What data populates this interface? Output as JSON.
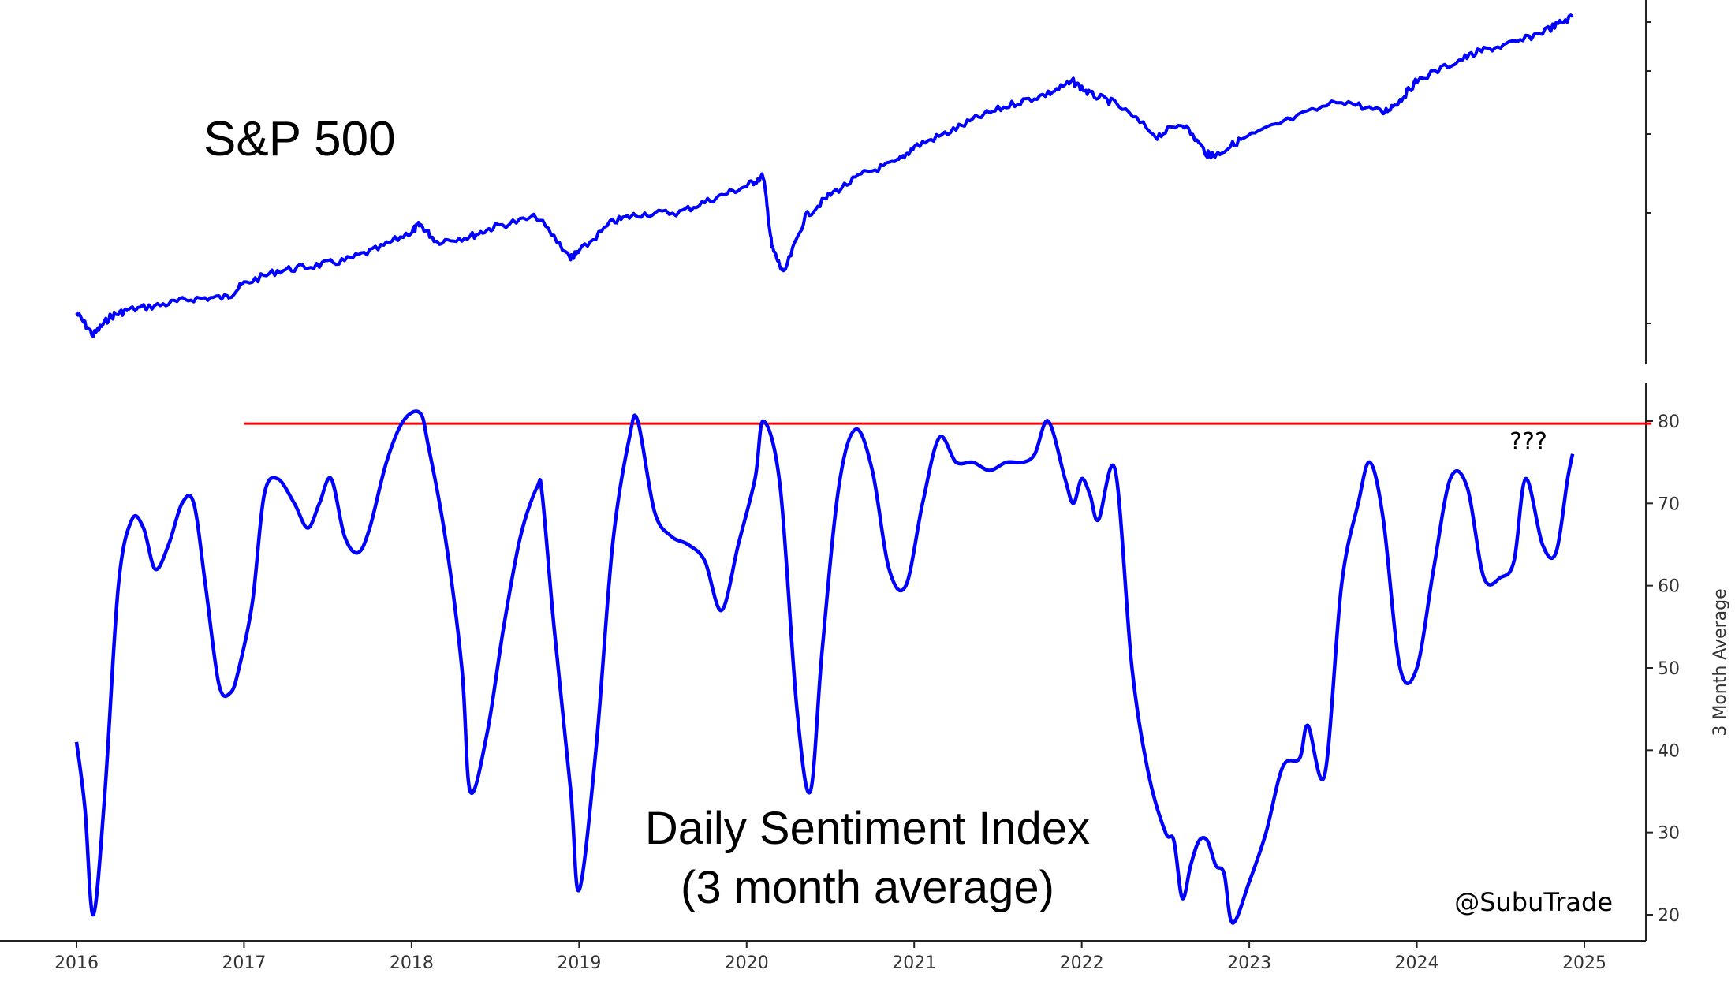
{
  "chart_data": [
    {
      "type": "line",
      "title": "S&P 500",
      "x": [
        2016.0,
        2016.1,
        2016.2,
        2016.3,
        2016.5,
        2016.7,
        2016.9,
        2017.0,
        2017.2,
        2017.4,
        2017.6,
        2017.8,
        2018.0,
        2018.05,
        2018.15,
        2018.35,
        2018.5,
        2018.75,
        2018.95,
        2019.0,
        2019.2,
        2019.35,
        2019.6,
        2019.8,
        2020.0,
        2020.1,
        2020.15,
        2020.22,
        2020.35,
        2020.5,
        2020.7,
        2020.9,
        2021.0,
        2021.2,
        2021.4,
        2021.6,
        2021.8,
        2021.95,
        2022.05,
        2022.2,
        2022.45,
        2022.6,
        2022.75,
        2022.8,
        2022.95,
        2023.2,
        2023.55,
        2023.8,
        2023.9,
        2024.0,
        2024.25,
        2024.4,
        2024.6,
        2024.8,
        2024.93
      ],
      "values": [
        2040,
        1880,
        2010,
        2060,
        2100,
        2150,
        2160,
        2270,
        2380,
        2420,
        2470,
        2580,
        2750,
        2820,
        2650,
        2700,
        2800,
        2900,
        2500,
        2550,
        2850,
        2930,
        2950,
        3100,
        3250,
        3370,
        2600,
        2350,
        2900,
        3150,
        3400,
        3550,
        3750,
        3950,
        4200,
        4400,
        4560,
        4760,
        4550,
        4400,
        3900,
        4100,
        3650,
        3640,
        3850,
        4100,
        4450,
        4250,
        4450,
        4780,
        5150,
        5350,
        5500,
        5800,
        6050
      ],
      "yticks": [],
      "xlim": [
        2016.0,
        2024.93
      ]
    },
    {
      "type": "line",
      "title": "Daily Sentiment Index",
      "subtitle": "(3 month average)",
      "ylabel": "3 Month Average",
      "ylim": [
        19,
        85
      ],
      "yticks": [
        20,
        30,
        40,
        50,
        60,
        70,
        80
      ],
      "xticks": [
        "2016",
        "2017",
        "2018",
        "2019",
        "2020",
        "2021",
        "2022",
        "2023",
        "2024",
        "2025"
      ],
      "xlim": [
        2016.0,
        2024.93
      ],
      "x": [
        2016.0,
        2016.05,
        2016.1,
        2016.17,
        2016.25,
        2016.33,
        2016.4,
        2016.47,
        2016.55,
        2016.63,
        2016.7,
        2016.77,
        2016.85,
        2016.92,
        2016.97,
        2017.05,
        2017.12,
        2017.2,
        2017.3,
        2017.38,
        2017.45,
        2017.52,
        2017.6,
        2017.68,
        2017.75,
        2017.85,
        2017.95,
        2018.05,
        2018.1,
        2018.2,
        2018.3,
        2018.35,
        2018.45,
        2018.55,
        2018.65,
        2018.75,
        2018.78,
        2018.85,
        2018.95,
        2019.0,
        2019.1,
        2019.2,
        2019.3,
        2019.35,
        2019.45,
        2019.55,
        2019.65,
        2019.75,
        2019.85,
        2019.95,
        2020.05,
        2020.1,
        2020.2,
        2020.3,
        2020.38,
        2020.45,
        2020.55,
        2020.65,
        2020.75,
        2020.85,
        2020.95,
        2021.05,
        2021.15,
        2021.25,
        2021.35,
        2021.45,
        2021.55,
        2021.65,
        2021.72,
        2021.8,
        2021.9,
        2021.95,
        2022.0,
        2022.05,
        2022.1,
        2022.2,
        2022.3,
        2022.4,
        2022.5,
        2022.55,
        2022.6,
        2022.65,
        2022.7,
        2022.75,
        2022.8,
        2022.85,
        2022.9,
        2023.0,
        2023.1,
        2023.2,
        2023.3,
        2023.35,
        2023.45,
        2023.55,
        2023.65,
        2023.72,
        2023.8,
        2023.9,
        2024.0,
        2024.1,
        2024.2,
        2024.3,
        2024.4,
        2024.5,
        2024.58,
        2024.65,
        2024.75,
        2024.83,
        2024.9,
        2024.93
      ],
      "values": [
        41,
        33,
        20,
        35,
        60,
        68,
        67,
        62,
        65,
        70,
        70,
        60,
        48,
        47,
        50,
        58,
        71,
        73,
        70,
        67,
        70,
        73,
        66,
        64,
        67,
        75,
        80,
        81,
        77,
        66,
        50,
        35,
        42,
        55,
        66,
        72,
        71,
        55,
        35,
        23,
        40,
        65,
        78,
        80,
        69,
        66,
        65,
        63,
        57,
        65,
        73,
        80,
        72,
        45,
        35,
        52,
        72,
        79,
        74,
        62,
        60,
        70,
        78,
        75,
        75,
        74,
        75,
        75,
        76,
        80,
        73,
        70,
        73,
        71,
        68,
        74,
        50,
        37,
        30,
        29,
        22,
        26,
        29,
        29,
        26,
        25,
        19,
        24,
        30,
        38,
        39,
        43,
        37,
        60,
        70,
        75,
        68,
        50,
        50,
        62,
        73,
        72,
        61,
        61,
        63,
        73,
        65,
        64,
        73,
        76
      ],
      "reference_line": {
        "y": 79.7,
        "from": 2017.0,
        "to": 2024.93,
        "color": "#ff0000"
      },
      "annotations": [
        "???"
      ],
      "series_color": "#0000ff"
    }
  ],
  "credit": "@SubuTrade"
}
